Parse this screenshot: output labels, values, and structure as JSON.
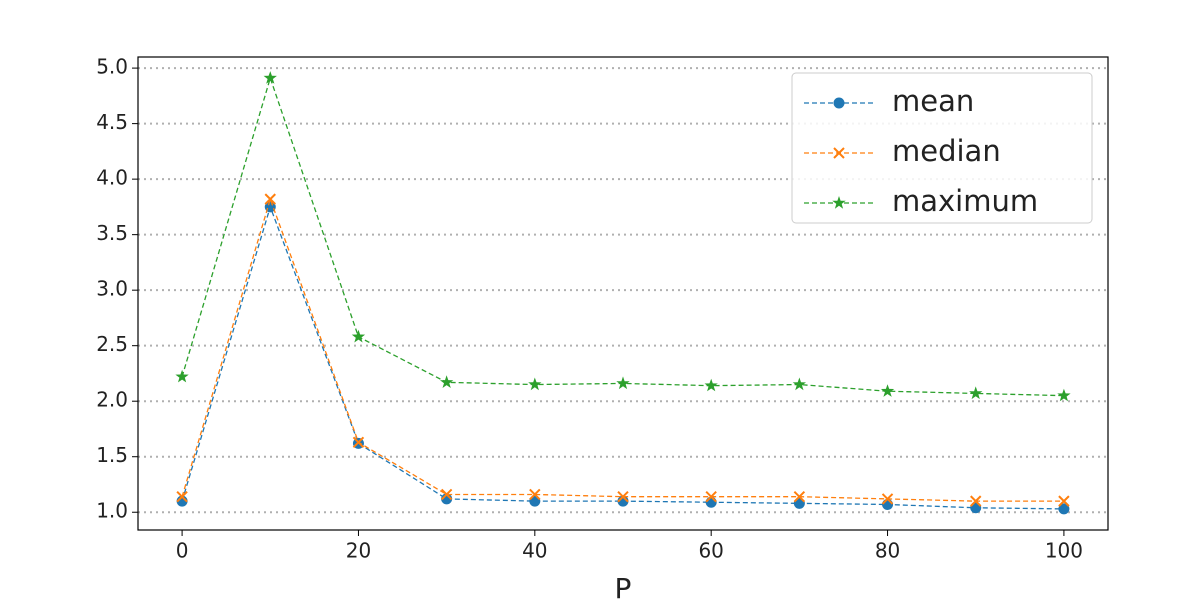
{
  "chart_data": {
    "type": "line",
    "xlabel": "P",
    "x": [
      0,
      10,
      20,
      30,
      40,
      50,
      60,
      70,
      80,
      90,
      100
    ],
    "series": [
      {
        "name": "mean",
        "color": "#1f77b4",
        "marker": "circle",
        "values": [
          1.1,
          3.75,
          1.62,
          1.12,
          1.1,
          1.1,
          1.09,
          1.08,
          1.07,
          1.04,
          1.03
        ]
      },
      {
        "name": "median",
        "color": "#ff7f0e",
        "marker": "x",
        "values": [
          1.14,
          3.82,
          1.63,
          1.16,
          1.16,
          1.14,
          1.14,
          1.14,
          1.12,
          1.1,
          1.1
        ]
      },
      {
        "name": "maximum",
        "color": "#2ca02c",
        "marker": "star",
        "values": [
          2.22,
          4.91,
          2.58,
          2.17,
          2.15,
          2.16,
          2.14,
          2.15,
          2.09,
          2.07,
          2.05
        ]
      }
    ],
    "xlim": [
      -5,
      105
    ],
    "xticks": [
      0,
      20,
      40,
      60,
      80,
      100
    ],
    "ylim": [
      0.84,
      5.1
    ],
    "yticks": [
      {
        "value": 1,
        "label": "1.0"
      },
      1.5,
      {
        "value": 2,
        "label": "2.0"
      },
      2.5,
      {
        "value": 3,
        "label": "3.0"
      },
      3.5,
      {
        "value": 4,
        "label": "4.0"
      },
      4.5,
      {
        "value": 5,
        "label": "5.0"
      }
    ],
    "grid": "y",
    "legend": "upper right"
  }
}
